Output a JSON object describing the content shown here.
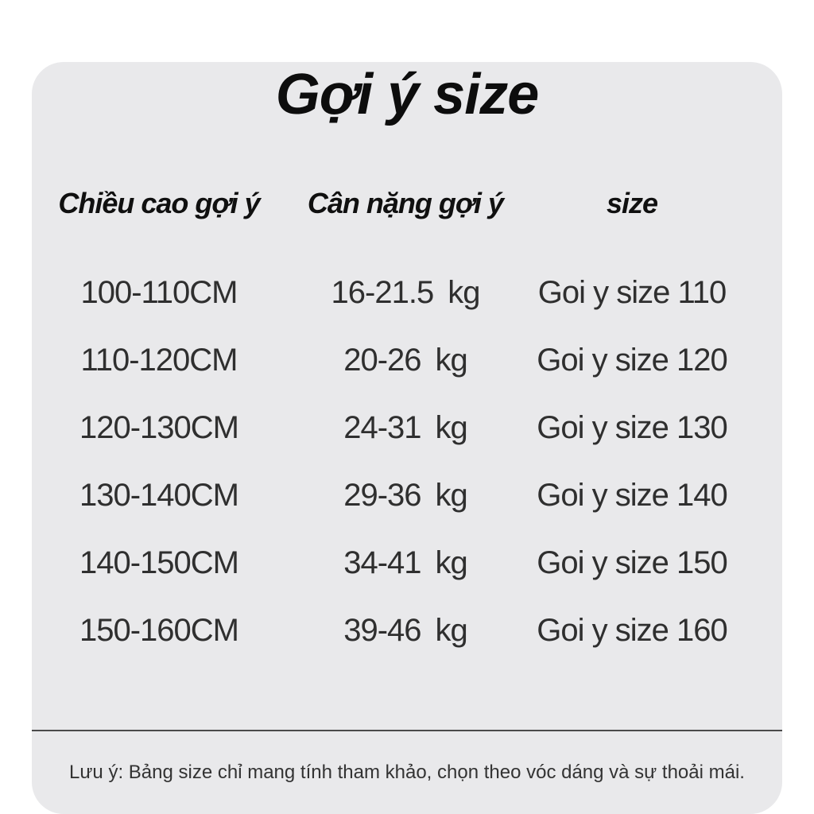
{
  "title": "Gợi ý size",
  "table": {
    "headers": [
      "Chiều cao gợi ý",
      "Cân nặng gợi ý",
      "size"
    ],
    "rows": [
      {
        "height": "100-110CM",
        "weight_range": "16-21.5",
        "weight_unit": "kg",
        "size_label": "Goi y size 110"
      },
      {
        "height": "110-120CM",
        "weight_range": "20-26",
        "weight_unit": "kg",
        "size_label": "Goi y size 120"
      },
      {
        "height": "120-130CM",
        "weight_range": "24-31",
        "weight_unit": "kg",
        "size_label": "Goi y size 130"
      },
      {
        "height": "130-140CM",
        "weight_range": "29-36",
        "weight_unit": "kg",
        "size_label": "Goi y size 140"
      },
      {
        "height": "140-150CM",
        "weight_range": "34-41",
        "weight_unit": "kg",
        "size_label": "Goi y size 150"
      },
      {
        "height": "150-160CM",
        "weight_range": "39-46",
        "weight_unit": "kg",
        "size_label": "Goi y size 160"
      }
    ]
  },
  "note": "Lưu ý: Bảng size chỉ mang tính tham khảo, chọn theo vóc dáng và sự thoải mái.",
  "colors": {
    "page_background": "#FFFFFF",
    "card_background": "#E9E9EB",
    "text_primary": "#0D0D0D",
    "text_secondary": "#2F2F2F",
    "divider": "#4B4B4B"
  }
}
